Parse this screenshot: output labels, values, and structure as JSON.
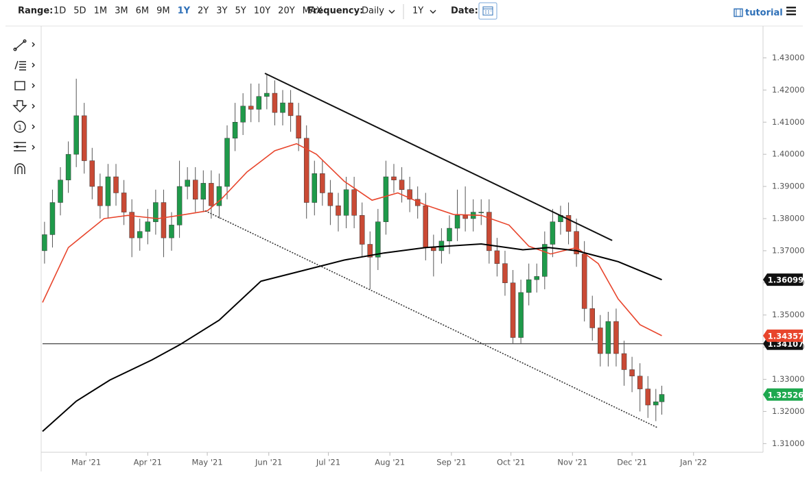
{
  "toolbar": {
    "range_label": "Range:",
    "ranges": [
      "1D",
      "5D",
      "1M",
      "3M",
      "6M",
      "9M",
      "1Y",
      "2Y",
      "3Y",
      "5Y",
      "10Y",
      "20Y",
      "MAX"
    ],
    "active": "1Y",
    "frequency_label": "Frequency:",
    "frequency": "Daily",
    "period": "1Y",
    "date_label": "Date:",
    "tutorial": "tutorial"
  },
  "chart_data": {
    "type": "candlestick",
    "x": [
      38,
      42,
      46,
      50,
      54,
      58,
      62,
      66,
      70,
      74,
      78,
      82,
      86,
      90,
      94,
      98,
      102,
      106,
      110,
      114,
      118,
      122,
      126,
      130,
      134,
      138,
      142,
      146,
      150,
      154,
      158,
      162,
      166,
      170,
      174,
      178,
      182,
      186,
      190,
      194,
      198,
      202,
      206,
      210,
      214,
      218,
      222,
      226,
      230,
      234,
      238,
      242,
      246,
      250,
      254,
      258,
      262,
      266,
      270,
      274,
      278,
      282,
      286,
      290,
      294,
      298,
      302,
      306,
      310,
      314,
      318,
      322,
      326,
      330,
      334,
      338,
      342,
      346,
      349
    ],
    "open": [
      1.37,
      1.375,
      1.385,
      1.392,
      1.4,
      1.412,
      1.398,
      1.39,
      1.384,
      1.393,
      1.388,
      1.382,
      1.374,
      1.376,
      1.379,
      1.385,
      1.374,
      1.378,
      1.39,
      1.392,
      1.386,
      1.391,
      1.384,
      1.39,
      1.405,
      1.41,
      1.415,
      1.414,
      1.418,
      1.419,
      1.413,
      1.416,
      1.412,
      1.405,
      1.385,
      1.394,
      1.388,
      1.384,
      1.381,
      1.389,
      1.381,
      1.372,
      1.368,
      1.379,
      1.393,
      1.392,
      1.389,
      1.386,
      1.384,
      1.371,
      1.37,
      1.373,
      1.377,
      1.381,
      1.38,
      1.382,
      1.382,
      1.37,
      1.366,
      1.36,
      1.343,
      1.357,
      1.361,
      1.362,
      1.372,
      1.379,
      1.381,
      1.376,
      1.369,
      1.352,
      1.346,
      1.338,
      1.348,
      1.338,
      1.333,
      1.331,
      1.327,
      1.322,
      1.323
    ],
    "high": [
      1.379,
      1.389,
      1.396,
      1.404,
      1.4235,
      1.416,
      1.402,
      1.394,
      1.397,
      1.397,
      1.392,
      1.386,
      1.38,
      1.383,
      1.389,
      1.389,
      1.382,
      1.398,
      1.396,
      1.396,
      1.395,
      1.395,
      1.394,
      1.409,
      1.416,
      1.419,
      1.422,
      1.422,
      1.425,
      1.423,
      1.42,
      1.42,
      1.416,
      1.409,
      1.398,
      1.398,
      1.392,
      1.388,
      1.393,
      1.393,
      1.385,
      1.376,
      1.383,
      1.398,
      1.397,
      1.396,
      1.393,
      1.39,
      1.388,
      1.375,
      1.377,
      1.381,
      1.389,
      1.39,
      1.386,
      1.386,
      1.386,
      1.374,
      1.37,
      1.364,
      1.361,
      1.366,
      1.366,
      1.376,
      1.383,
      1.384,
      1.385,
      1.38,
      1.373,
      1.356,
      1.35,
      1.351,
      1.352,
      1.342,
      1.337,
      1.335,
      1.331,
      1.327,
      1.328
    ],
    "low": [
      1.366,
      1.371,
      1.381,
      1.388,
      1.396,
      1.394,
      1.386,
      1.38,
      1.38,
      1.384,
      1.378,
      1.368,
      1.37,
      1.372,
      1.375,
      1.368,
      1.37,
      1.374,
      1.386,
      1.382,
      1.382,
      1.38,
      1.38,
      1.386,
      1.401,
      1.406,
      1.41,
      1.41,
      1.414,
      1.409,
      1.409,
      1.407,
      1.401,
      1.38,
      1.381,
      1.384,
      1.378,
      1.376,
      1.377,
      1.377,
      1.368,
      1.358,
      1.364,
      1.375,
      1.388,
      1.385,
      1.382,
      1.38,
      1.367,
      1.362,
      1.366,
      1.369,
      1.373,
      1.376,
      1.376,
      1.378,
      1.366,
      1.362,
      1.356,
      1.341,
      1.341,
      1.353,
      1.357,
      1.358,
      1.368,
      1.375,
      1.372,
      1.365,
      1.348,
      1.342,
      1.334,
      1.334,
      1.334,
      1.328,
      1.326,
      1.32,
      1.318,
      1.317,
      1.319
    ],
    "close": [
      1.375,
      1.385,
      1.392,
      1.4,
      1.412,
      1.398,
      1.39,
      1.384,
      1.393,
      1.388,
      1.382,
      1.374,
      1.376,
      1.379,
      1.385,
      1.374,
      1.378,
      1.39,
      1.392,
      1.386,
      1.391,
      1.384,
      1.39,
      1.405,
      1.41,
      1.415,
      1.414,
      1.418,
      1.419,
      1.413,
      1.416,
      1.412,
      1.405,
      1.385,
      1.394,
      1.388,
      1.384,
      1.381,
      1.389,
      1.381,
      1.372,
      1.368,
      1.379,
      1.393,
      1.392,
      1.389,
      1.386,
      1.384,
      1.371,
      1.37,
      1.373,
      1.377,
      1.381,
      1.38,
      1.382,
      1.382,
      1.37,
      1.366,
      1.36,
      1.343,
      1.357,
      1.361,
      1.362,
      1.372,
      1.379,
      1.381,
      1.376,
      1.369,
      1.352,
      1.346,
      1.338,
      1.348,
      1.338,
      1.333,
      1.331,
      1.327,
      1.322,
      1.323,
      1.3253
    ],
    "up_color": "#1f9a4a",
    "down_color": "#c94a35",
    "xlim": [
      37,
      400
    ],
    "xticks": [
      {
        "value": 59,
        "label": "Mar '21"
      },
      {
        "value": 90,
        "label": "Apr '21"
      },
      {
        "value": 120,
        "label": "May '21"
      },
      {
        "value": 151,
        "label": "Jun '21"
      },
      {
        "value": 181,
        "label": "Jul '21"
      },
      {
        "value": 212,
        "label": "Aug '21"
      },
      {
        "value": 243,
        "label": "Sep '21"
      },
      {
        "value": 273,
        "label": "Oct '21"
      },
      {
        "value": 304,
        "label": "Nov '21"
      },
      {
        "value": 334,
        "label": "Dec '21"
      },
      {
        "value": 365,
        "label": "Jan '22"
      }
    ],
    "ylim": [
      1.3073,
      1.4399
    ],
    "yticks": [
      {
        "value": 1.31,
        "label": "1.31000"
      },
      {
        "value": 1.32,
        "label": "1.32000"
      },
      {
        "value": 1.33,
        "label": "1.33000"
      },
      {
        "value": 1.34,
        "label": "1.34000"
      },
      {
        "value": 1.35,
        "label": "1.35000"
      },
      {
        "value": 1.36,
        "label": "1.36000"
      },
      {
        "value": 1.37,
        "label": "1.37000"
      },
      {
        "value": 1.38,
        "label": "1.38000"
      },
      {
        "value": 1.39,
        "label": "1.39000"
      },
      {
        "value": 1.4,
        "label": "1.40000"
      },
      {
        "value": 1.41,
        "label": "1.41000"
      },
      {
        "value": 1.42,
        "label": "1.42000"
      },
      {
        "value": 1.43,
        "label": "1.43000"
      }
    ],
    "lines": [
      {
        "color": "#e8452c",
        "x": [
          37,
          50,
          68,
          80,
          95,
          106,
          120,
          127,
          140,
          154,
          165,
          175,
          189,
          203,
          216,
          230,
          244,
          258,
          272,
          282,
          293,
          306,
          317,
          327,
          338,
          349
        ],
        "values": [
          1.3539,
          1.371,
          1.38,
          1.381,
          1.38,
          1.381,
          1.3824,
          1.386,
          1.3945,
          1.4011,
          1.4033,
          1.4,
          1.3916,
          1.3857,
          1.388,
          1.3842,
          1.3813,
          1.381,
          1.378,
          1.3714,
          1.369,
          1.371,
          1.366,
          1.355,
          1.347,
          1.34357
        ]
      },
      {
        "color": "#000000",
        "x": [
          37,
          54,
          71,
          92,
          106,
          126,
          147,
          168,
          189,
          209,
          230,
          258,
          279,
          292,
          306,
          327,
          349
        ],
        "values": [
          1.3138,
          1.3232,
          1.3298,
          1.336,
          1.3407,
          1.3484,
          1.3605,
          1.3638,
          1.3671,
          1.3693,
          1.371,
          1.3721,
          1.3703,
          1.371,
          1.37,
          1.3666,
          1.36099
        ]
      }
    ],
    "trendlines": [
      {
        "style": "solid",
        "x": [
          149,
          324
        ],
        "values": [
          1.4252,
          1.3732
        ]
      },
      {
        "style": "dotted",
        "x": [
          119,
          347
        ],
        "values": [
          1.3824,
          1.3149
        ]
      }
    ],
    "hlines": [
      1.34107
    ],
    "price_labels": [
      {
        "value": 1.36099,
        "color": "#111111"
      },
      {
        "value": 1.34107,
        "color": "#111111"
      },
      {
        "value": 1.34357,
        "color": "#e8452c"
      },
      {
        "value": 1.32526,
        "color": "#1ea84f"
      }
    ]
  }
}
